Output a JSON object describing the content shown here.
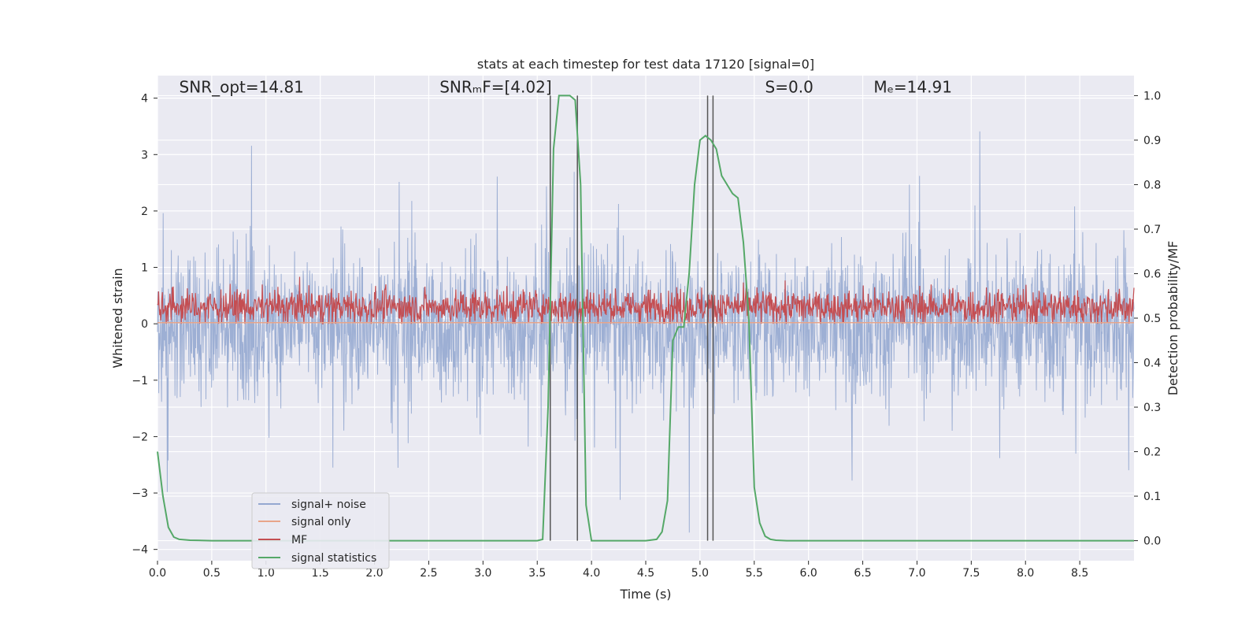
{
  "chart_data": {
    "type": "line",
    "title": "stats at each timestep for test data 17120 [signal=0]",
    "xlabel": "Time (s)",
    "ylabel": "Whitened strain",
    "y2label": "Detection probability/MF",
    "xlim": [
      0.0,
      9.0
    ],
    "ylim": [
      -4.2,
      4.4
    ],
    "y2lim": [
      -0.045,
      1.045
    ],
    "x_ticks": [
      "0.0",
      "0.5",
      "1.0",
      "1.5",
      "2.0",
      "2.5",
      "3.0",
      "3.5",
      "4.0",
      "4.5",
      "5.0",
      "5.5",
      "6.0",
      "6.5",
      "7.0",
      "7.5",
      "8.0",
      "8.5"
    ],
    "y_ticks": [
      "4",
      "3",
      "2",
      "1",
      "0",
      "−1",
      "−2",
      "−3",
      "−4"
    ],
    "y2_ticks": [
      "1.0",
      "0.9",
      "0.8",
      "0.7",
      "0.6",
      "0.5",
      "0.4",
      "0.3",
      "0.2",
      "0.1",
      "0.0"
    ],
    "grid": true,
    "legend_position": "lower-left",
    "annotations": [
      {
        "text": "SNR_opt=14.81",
        "x": 0.2,
        "y": 4.1
      },
      {
        "text": "SNRₘF=[4.02]",
        "x": 2.6,
        "y": 4.1
      },
      {
        "text": "S=0.0",
        "x": 5.6,
        "y": 4.1
      },
      {
        "text": "Mₑ=14.91",
        "x": 6.6,
        "y": 4.1
      }
    ],
    "series": [
      {
        "name": "signal+ noise",
        "axis": "left",
        "color": "#95a8d0",
        "style": "noise band, approx range -3.7 to 3.8"
      },
      {
        "name": "signal only",
        "axis": "left",
        "color": "#e8a58a",
        "values_note": "flat near 0"
      },
      {
        "name": "MF",
        "axis": "left",
        "color": "#c44e52",
        "style": "band approx 0 to 0.9"
      },
      {
        "name": "signal statistics",
        "axis": "right",
        "color": "#55a868",
        "x": [
          0.0,
          0.05,
          0.1,
          0.15,
          0.2,
          0.3,
          0.5,
          1.0,
          2.0,
          3.0,
          3.5,
          3.55,
          3.6,
          3.65,
          3.7,
          3.75,
          3.8,
          3.85,
          3.9,
          3.95,
          4.0,
          4.1,
          4.3,
          4.5,
          4.6,
          4.65,
          4.7,
          4.75,
          4.8,
          4.85,
          4.9,
          4.95,
          5.0,
          5.05,
          5.1,
          5.15,
          5.2,
          5.25,
          5.3,
          5.35,
          5.4,
          5.45,
          5.5,
          5.55,
          5.6,
          5.65,
          5.7,
          5.8,
          6.0,
          7.0,
          8.0,
          9.0
        ],
        "y": [
          0.2,
          0.1,
          0.03,
          0.008,
          0.003,
          0.001,
          0.0,
          0.0,
          0.0,
          0.0,
          0.0,
          0.003,
          0.3,
          0.88,
          1.0,
          1.0,
          1.0,
          0.99,
          0.8,
          0.08,
          0.0,
          0.0,
          0.0,
          0.0,
          0.003,
          0.02,
          0.09,
          0.45,
          0.48,
          0.48,
          0.6,
          0.8,
          0.9,
          0.91,
          0.9,
          0.88,
          0.82,
          0.8,
          0.78,
          0.77,
          0.67,
          0.5,
          0.12,
          0.04,
          0.01,
          0.003,
          0.001,
          0.0,
          0.0,
          0.0,
          0.0,
          0.0
        ]
      }
    ],
    "vertical_lines_x": [
      3.62,
      3.87,
      5.07,
      5.12
    ]
  },
  "legend": {
    "items": [
      {
        "label": "signal+ noise",
        "color": "#95a8d0"
      },
      {
        "label": "signal only",
        "color": "#e8a58a"
      },
      {
        "label": "MF",
        "color": "#c44e52"
      },
      {
        "label": "signal statistics",
        "color": "#55a868"
      }
    ]
  }
}
